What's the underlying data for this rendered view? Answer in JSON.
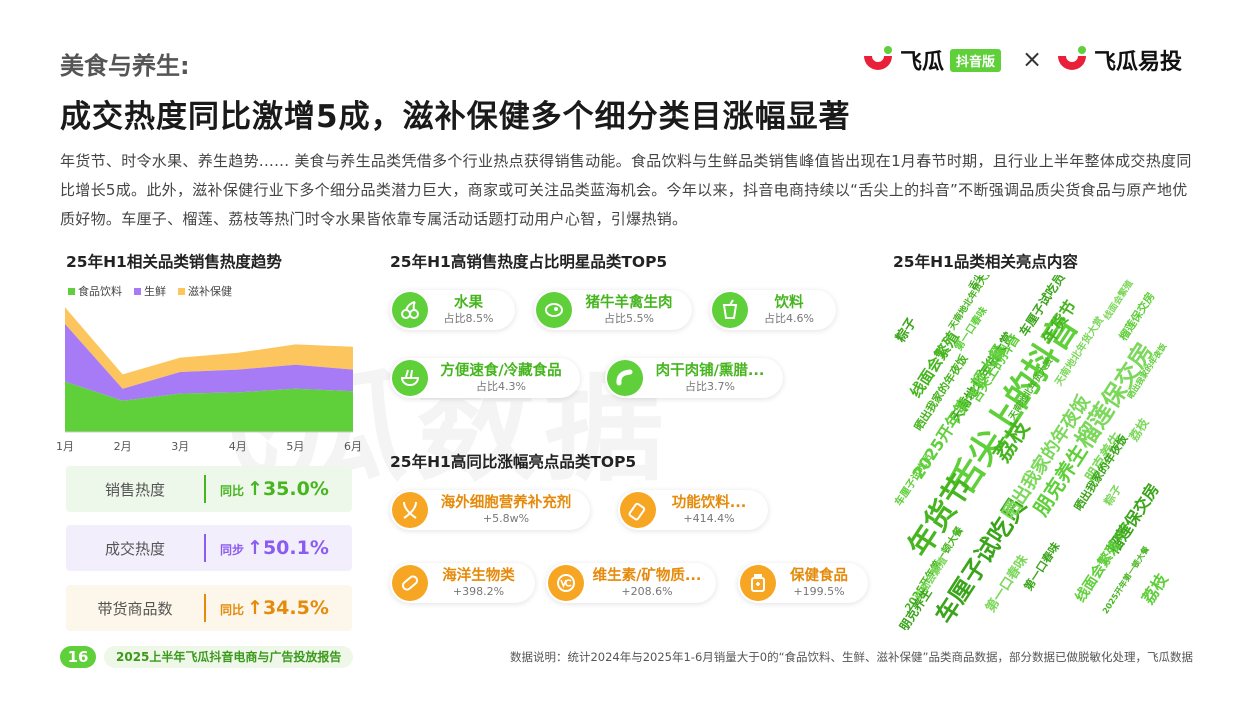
{
  "header": {
    "section": "美食与养生:",
    "title": "成交热度同比激增5成，滋补保健多个细分类目涨幅显著",
    "intro": "年货节、时令水果、养生趋势...... 美食与养生品类凭借多个行业热点获得销售动能。食品饮料与生鲜品类销售峰值皆出现在1月春节时期，且行业上半年整体成交热度同比增长5成。此外，滋补保健行业下多个细分品类潜力巨大，商家或可关注品类蓝海机会。今年以来，抖音电商持续以“舌尖上的抖音”不断强调品质尖货食品与原产地优质好物。车厘子、榴莲、荔枝等热门时令水果皆依靠专属活动话题打动用户心智，引爆热销。"
  },
  "logos": {
    "brand1": "飞瓜",
    "brand1_tag": "抖音版",
    "times": "×",
    "brand2": "飞瓜易投"
  },
  "watermark": "飞瓜数据",
  "colors": {
    "green": "#5fcf3a",
    "purple": "#a77bf5",
    "yellow": "#fdc55e",
    "orange": "#f6a623"
  },
  "trend": {
    "title": "25年H1相关品类销售热度趋势",
    "legend": [
      "食品饮料",
      "生鲜",
      "滋补保健"
    ]
  },
  "chart_data": {
    "type": "area",
    "stacked": true,
    "categories": [
      "1月",
      "2月",
      "3月",
      "4月",
      "5月",
      "6月"
    ],
    "series": [
      {
        "name": "食品饮料",
        "values": [
          42,
          26,
          32,
          33,
          36,
          34
        ]
      },
      {
        "name": "生鲜",
        "values": [
          48,
          10,
          18,
          19,
          20,
          18
        ]
      },
      {
        "name": "滋补保健",
        "values": [
          14,
          12,
          12,
          14,
          17,
          19
        ]
      }
    ],
    "ylim": [
      0,
      110
    ],
    "grid": false,
    "legend_position": "top-left"
  },
  "metrics": [
    {
      "label": "销售热度",
      "prefix": "同比",
      "arrow": "↑",
      "value": "35.0%",
      "color": "#46b51f",
      "bg": "#eef8ea"
    },
    {
      "label": "成交热度",
      "prefix": "同步",
      "arrow": "↑",
      "value": "50.1%",
      "color": "#8a5cf0",
      "bg": "#f3eefc"
    },
    {
      "label": "带货商品数",
      "prefix": "同比",
      "arrow": "↑",
      "value": "34.5%",
      "color": "#e58a0a",
      "bg": "#fdf6ea"
    }
  ],
  "star_top5": {
    "title": "25年H1高销售热度占比明星品类TOP5",
    "items": [
      {
        "name": "水果",
        "sub": "占比8.5%",
        "icon": "cherry-icon"
      },
      {
        "name": "猪牛羊禽生肉",
        "sub": "占比5.5%",
        "icon": "steak-icon"
      },
      {
        "name": "饮料",
        "sub": "占比4.6%",
        "icon": "drink-cup-icon"
      },
      {
        "name": "方便速食/冷藏食品",
        "sub": "占比4.3%",
        "icon": "noodle-bowl-icon"
      },
      {
        "name": "肉干肉铺/熏腊...",
        "sub": "占比3.7%",
        "icon": "sausage-icon"
      }
    ]
  },
  "growth_top5": {
    "title": "25年H1高同比涨幅亮点品类TOP5",
    "items": [
      {
        "name": "海外细胞营养补充剂",
        "sub": "+5.8w%",
        "icon": "dna-icon"
      },
      {
        "name": "功能饮料...",
        "sub": "+414.4%",
        "icon": "bottle-icon"
      },
      {
        "name": "海洋生物类",
        "sub": "+398.2%",
        "icon": "capsule-icon"
      },
      {
        "name": "维生素/矿物质...",
        "sub": "+208.6%",
        "icon": "vitamin-icon"
      },
      {
        "name": "保健食品",
        "sub": "+199.5%",
        "icon": "supplement-jar-icon"
      }
    ]
  },
  "wordcloud": {
    "title": "25年H1品类相关亮点内容",
    "words": [
      "舌尖上的抖音",
      "年货节",
      "榴莲保交房",
      "车厘子试吃员",
      "朋克养生",
      "荔枝",
      "晒出我家的年夜饭",
      "天南地北年货大赏",
      "2025开年第一顿大餐",
      "线面会繁殖",
      "第一口春味",
      "粽子",
      "舌尖上的抖音",
      "年货节",
      "朋克养生",
      "榴莲保交房",
      "荔枝",
      "晒出我家的年夜饭",
      "天南地北年货大赏",
      "第一口春味",
      "线面会繁殖",
      "2025开年第一顿大餐",
      "粽子",
      "车厘子试吃员",
      "榴莲保交房",
      "天南地北年货大赏",
      "荔枝",
      "晒出我家的年夜饭",
      "第一口春味",
      "2025开年第一顿大餐",
      "线面会繁殖",
      "朋克养生",
      "车厘子试吃员",
      "粽子",
      "线面会繁殖",
      "舌尖上的抖音",
      "晒出我家的年夜饭",
      "天南地北年货大赏"
    ]
  },
  "footer": {
    "page": "16",
    "report": "2025上半年飞瓜抖音电商与广告投放报告",
    "note": "数据说明：统计2024年与2025年1-6月销量大于0的“食品饮料、生鲜、滋补保健”品类商品数据，部分数据已做脱敏化处理，飞瓜数据"
  }
}
